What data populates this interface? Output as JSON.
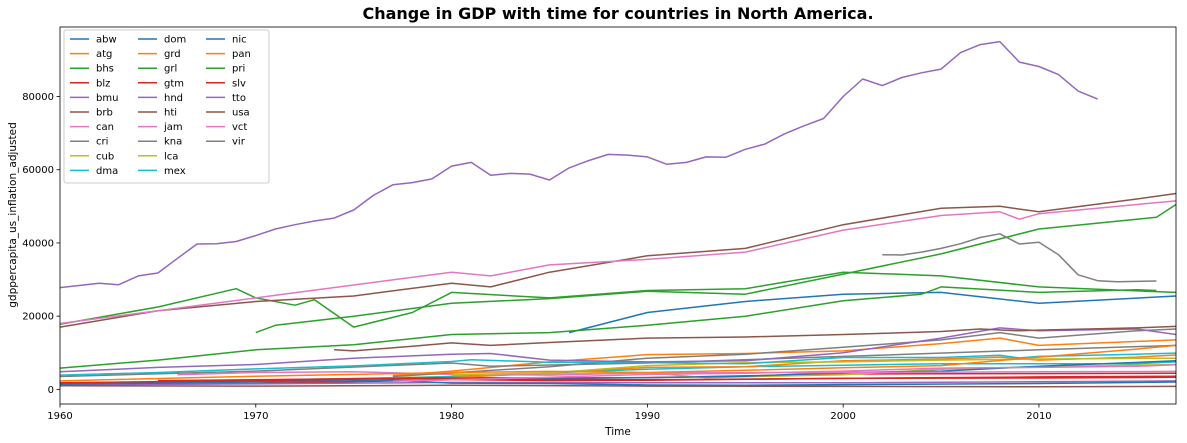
{
  "chart_data": {
    "type": "line",
    "title": "Change in GDP with time for countries in North America.",
    "xlabel": "Time",
    "ylabel": "gdppercapita_us_inflation_adjusted",
    "xlim": [
      1960,
      2017
    ],
    "ylim": [
      -4000,
      99000
    ],
    "xticks": [
      1960,
      1970,
      1980,
      1990,
      2000,
      2010
    ],
    "yticks": [
      0,
      20000,
      40000,
      60000,
      80000
    ],
    "grid": false,
    "legend": {
      "placement": "top-left",
      "columns": 3
    },
    "series": [
      {
        "name": "abw",
        "color": "#1f77b4",
        "x": [
          1986,
          1990,
          1995,
          2000,
          2005,
          2010,
          2017
        ],
        "y": [
          15500,
          21000,
          24000,
          26000,
          26500,
          23500,
          25500
        ]
      },
      {
        "name": "atg",
        "color": "#ff7f0e",
        "x": [
          1977,
          1980,
          1985,
          1990,
          1995,
          2000,
          2005,
          2008,
          2010,
          2017
        ],
        "y": [
          3800,
          5000,
          7500,
          9500,
          9800,
          10500,
          12500,
          14000,
          12000,
          13500
        ]
      },
      {
        "name": "bhs",
        "color": "#2ca02c",
        "x": [
          1960,
          1965,
          1969,
          1970,
          1972,
          1973,
          1975,
          1978,
          1980,
          1985,
          1990,
          1995,
          2000,
          2005,
          2010,
          2017
        ],
        "y": [
          17800,
          22500,
          27500,
          25000,
          23000,
          24500,
          17000,
          21000,
          26500,
          25000,
          27000,
          27500,
          32000,
          31000,
          28000,
          26500
        ]
      },
      {
        "name": "blz",
        "color": "#d62728",
        "x": [
          1960,
          1970,
          1980,
          1990,
          2000,
          2010,
          2017
        ],
        "y": [
          1200,
          1600,
          2600,
          3200,
          4200,
          4300,
          4400
        ]
      },
      {
        "name": "bmu",
        "color": "#9467bd",
        "x": [
          1960,
          1962,
          1963,
          1964,
          1965,
          1966,
          1967,
          1968,
          1969,
          1970,
          1971,
          1972,
          1973,
          1974,
          1975,
          1976,
          1977,
          1978,
          1979,
          1980,
          1981,
          1982,
          1983,
          1984,
          1985,
          1986,
          1987,
          1988,
          1989,
          1990,
          1991,
          1992,
          1993,
          1994,
          1995,
          1996,
          1997,
          1998,
          1999,
          2000,
          2001,
          2002,
          2003,
          2004,
          2005,
          2006,
          2007,
          2008,
          2009,
          2010,
          2011,
          2012,
          2013
        ],
        "y": [
          27800,
          29000,
          28600,
          31000,
          31800,
          35800,
          39700,
          39800,
          40400,
          42000,
          43800,
          45000,
          46000,
          46800,
          49000,
          53000,
          55900,
          56500,
          57500,
          61000,
          62000,
          58500,
          59000,
          58800,
          57200,
          60500,
          62500,
          64200,
          64000,
          63500,
          61500,
          62000,
          63500,
          63400,
          65600,
          67000,
          69800,
          72000,
          74000,
          80000,
          84800,
          83000,
          85200,
          86500,
          87500,
          92000,
          94200,
          95000,
          89400,
          88200,
          86000,
          81500,
          79300
        ]
      },
      {
        "name": "brb",
        "color": "#8c564b",
        "x": [
          1960,
          1965,
          1970,
          1975,
          1980,
          1982,
          1985,
          1990,
          1995,
          2000,
          2005,
          2008,
          2010,
          2015,
          2017
        ],
        "y": [
          17000,
          21500,
          24000,
          25500,
          29000,
          28000,
          32000,
          36500,
          38500,
          45000,
          49500,
          50000,
          48500,
          52000,
          53500
        ]
      },
      {
        "name": "can",
        "color": "#e377c2",
        "x": [
          1960,
          1965,
          1970,
          1975,
          1980,
          1982,
          1985,
          1990,
          1995,
          2000,
          2005,
          2008,
          2009,
          2010,
          2015,
          2017
        ],
        "y": [
          18000,
          21500,
          25000,
          28500,
          32000,
          31000,
          34000,
          35500,
          37500,
          43500,
          47500,
          48500,
          46500,
          48000,
          50500,
          51500
        ]
      },
      {
        "name": "cri",
        "color": "#7f7f7f",
        "x": [
          1960,
          1970,
          1980,
          1982,
          1990,
          2000,
          2010,
          2017
        ],
        "y": [
          3500,
          5000,
          7200,
          6300,
          7200,
          9000,
          10800,
          12000
        ]
      },
      {
        "name": "cub",
        "color": "#bcbd22",
        "x": [
          1970,
          1980,
          1985,
          1990,
          1993,
          2000,
          2005,
          2010,
          2017
        ],
        "y": [
          2500,
          3500,
          4200,
          4500,
          3200,
          4000,
          5500,
          6200,
          6800
        ]
      },
      {
        "name": "dma",
        "color": "#17becf",
        "x": [
          1977,
          1980,
          1985,
          1990,
          1995,
          2000,
          2005,
          2010,
          2015,
          2017
        ],
        "y": [
          3000,
          3500,
          4500,
          5500,
          6200,
          6600,
          7000,
          7000,
          7000,
          7500
        ]
      },
      {
        "name": "dom",
        "color": "#1f77b4",
        "x": [
          1960,
          1965,
          1970,
          1975,
          1980,
          1985,
          1990,
          1995,
          2000,
          2005,
          2010,
          2017
        ],
        "y": [
          1500,
          1800,
          2200,
          2800,
          3200,
          3100,
          3200,
          3600,
          4600,
          5000,
          6300,
          7800
        ]
      },
      {
        "name": "grd",
        "color": "#ff7f0e",
        "x": [
          1977,
          1980,
          1985,
          1990,
          1995,
          2000,
          2005,
          2008,
          2010,
          2015,
          2017
        ],
        "y": [
          2500,
          3200,
          4500,
          6000,
          6200,
          7800,
          8300,
          8800,
          8000,
          8800,
          9400
        ]
      },
      {
        "name": "grl",
        "color": "#2ca02c",
        "x": [
          1970,
          1971,
          1975,
          1980,
          1985,
          1990,
          1995,
          2000,
          2005,
          2010,
          2015,
          2016,
          2017
        ],
        "y": [
          15500,
          17500,
          20000,
          23500,
          24800,
          26800,
          26000,
          31500,
          37000,
          43800,
          46500,
          47000,
          50500
        ]
      },
      {
        "name": "gtm",
        "color": "#d62728",
        "x": [
          1960,
          1970,
          1980,
          1985,
          1990,
          2000,
          2010,
          2017
        ],
        "y": [
          1800,
          2400,
          3100,
          2600,
          2600,
          3000,
          3100,
          3300
        ]
      },
      {
        "name": "hnd",
        "color": "#9467bd",
        "x": [
          1960,
          1970,
          1980,
          1990,
          2000,
          2010,
          2017
        ],
        "y": [
          1300,
          1500,
          1900,
          1800,
          1800,
          2100,
          2300
        ]
      },
      {
        "name": "hti",
        "color": "#8c564b",
        "x": [
          1960,
          1970,
          1980,
          1990,
          2000,
          2010,
          2017
        ],
        "y": [
          1000,
          900,
          1100,
          900,
          800,
          700,
          800
        ]
      },
      {
        "name": "jam",
        "color": "#e377c2",
        "x": [
          1966,
          1970,
          1975,
          1980,
          1985,
          1990,
          2000,
          2010,
          2017
        ],
        "y": [
          4000,
          4600,
          4800,
          4100,
          3900,
          4500,
          4600,
          4800,
          4900
        ]
      },
      {
        "name": "kna",
        "color": "#7f7f7f",
        "x": [
          1977,
          1980,
          1985,
          1990,
          1995,
          2000,
          2005,
          2008,
          2010,
          2015,
          2017
        ],
        "y": [
          3500,
          4500,
          6200,
          8500,
          9600,
          11500,
          13500,
          15500,
          14000,
          16000,
          16500
        ]
      },
      {
        "name": "lca",
        "color": "#bcbd22",
        "x": [
          1980,
          1985,
          1990,
          1995,
          2000,
          2005,
          2010,
          2017
        ],
        "y": [
          4000,
          4500,
          6500,
          7300,
          7500,
          8000,
          8300,
          8500
        ]
      },
      {
        "name": "mex",
        "color": "#17becf",
        "x": [
          1960,
          1965,
          1970,
          1975,
          1980,
          1981,
          1985,
          1990,
          1995,
          2000,
          2005,
          2008,
          2009,
          2010,
          2015,
          2017
        ],
        "y": [
          3900,
          4600,
          5600,
          6400,
          7600,
          8100,
          7400,
          7300,
          7000,
          8700,
          8700,
          9300,
          8600,
          9000,
          9600,
          9900
        ]
      },
      {
        "name": "nic",
        "color": "#1f77b4",
        "x": [
          1960,
          1970,
          1977,
          1980,
          1985,
          1990,
          1995,
          2000,
          2010,
          2017
        ],
        "y": [
          1400,
          2000,
          2500,
          1700,
          1600,
          1200,
          1100,
          1300,
          1600,
          2000
        ]
      },
      {
        "name": "pan",
        "color": "#ff7f0e",
        "x": [
          1960,
          1970,
          1980,
          1985,
          1990,
          1995,
          2000,
          2005,
          2010,
          2015,
          2017
        ],
        "y": [
          2300,
          3600,
          4600,
          4900,
          4600,
          5200,
          5900,
          6500,
          8800,
          11000,
          12000
        ]
      },
      {
        "name": "pri",
        "color": "#2ca02c",
        "x": [
          1960,
          1965,
          1970,
          1975,
          1980,
          1985,
          1990,
          1995,
          2000,
          2004,
          2005,
          2010,
          2015,
          2016
        ],
        "y": [
          5800,
          8000,
          10800,
          12200,
          15000,
          15500,
          17500,
          20000,
          24200,
          26000,
          28000,
          26500,
          27200,
          27000
        ]
      },
      {
        "name": "slv",
        "color": "#d62728",
        "x": [
          1965,
          1970,
          1978,
          1980,
          1985,
          1990,
          2000,
          2010,
          2017
        ],
        "y": [
          2400,
          2600,
          3100,
          2700,
          2400,
          2500,
          3000,
          3400,
          3600
        ]
      },
      {
        "name": "tto",
        "color": "#9467bd",
        "x": [
          1960,
          1965,
          1970,
          1975,
          1980,
          1982,
          1985,
          1990,
          1995,
          2000,
          2005,
          2008,
          2010,
          2015,
          2017
        ],
        "y": [
          4800,
          6000,
          6800,
          8500,
          9600,
          9800,
          8000,
          7500,
          7800,
          10000,
          14000,
          16800,
          16000,
          16500,
          15000
        ]
      },
      {
        "name": "usa",
        "color": "#8c564b",
        "x": [
          1974,
          1975,
          1978,
          1980,
          1982,
          1985,
          1990,
          1995,
          2000,
          2005,
          2007,
          2009,
          2010,
          2015,
          2017
        ],
        "y": [
          10800,
          10500,
          11800,
          12700,
          12000,
          12800,
          14000,
          14300,
          15000,
          15800,
          16500,
          16000,
          16200,
          16800,
          17200
        ]
      },
      {
        "name": "vct",
        "color": "#e377c2",
        "x": [
          1977,
          1980,
          1985,
          1990,
          1995,
          2000,
          2005,
          2010,
          2015,
          2017
        ],
        "y": [
          2200,
          2600,
          3300,
          4100,
          4400,
          5000,
          5800,
          6000,
          6300,
          6700
        ]
      },
      {
        "name": "vir",
        "color": "#7f7f7f",
        "x": [
          2002,
          2003,
          2004,
          2005,
          2006,
          2007,
          2008,
          2009,
          2010,
          2011,
          2012,
          2013,
          2014,
          2015,
          2016
        ],
        "y": [
          36800,
          36700,
          37500,
          38500,
          39800,
          41500,
          42500,
          39700,
          40200,
          36800,
          31300,
          29700,
          29400,
          29500,
          29600
        ]
      }
    ]
  }
}
